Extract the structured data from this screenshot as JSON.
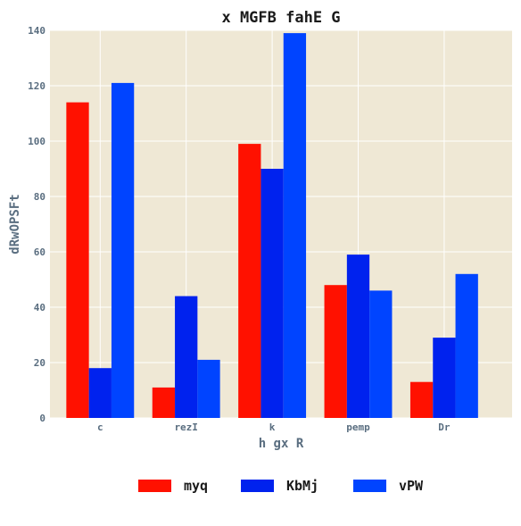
{
  "chart_data": {
    "type": "bar",
    "title": "x MGFB fahE G",
    "xlabel": "h gx R",
    "ylabel": "dRwOPSFt",
    "categories": [
      "c",
      "rezI",
      "k",
      "pemp",
      "Dr"
    ],
    "series": [
      {
        "name": "myq",
        "color": "#ff1100",
        "values": [
          114,
          11,
          99,
          48,
          13
        ]
      },
      {
        "name": "KbMj",
        "color": "#0022ee",
        "values": [
          18,
          44,
          90,
          59,
          29
        ]
      },
      {
        "name": "vPW",
        "color": "#0044ff",
        "values": [
          121,
          21,
          139,
          46,
          52
        ]
      }
    ],
    "ylim": [
      0,
      140
    ],
    "yticks": [
      0,
      20,
      40,
      60,
      80,
      100,
      120,
      140
    ],
    "grid": true,
    "legend_position": "bottom",
    "plot_background": "#efe8d5",
    "grid_color": "#ffffff"
  }
}
